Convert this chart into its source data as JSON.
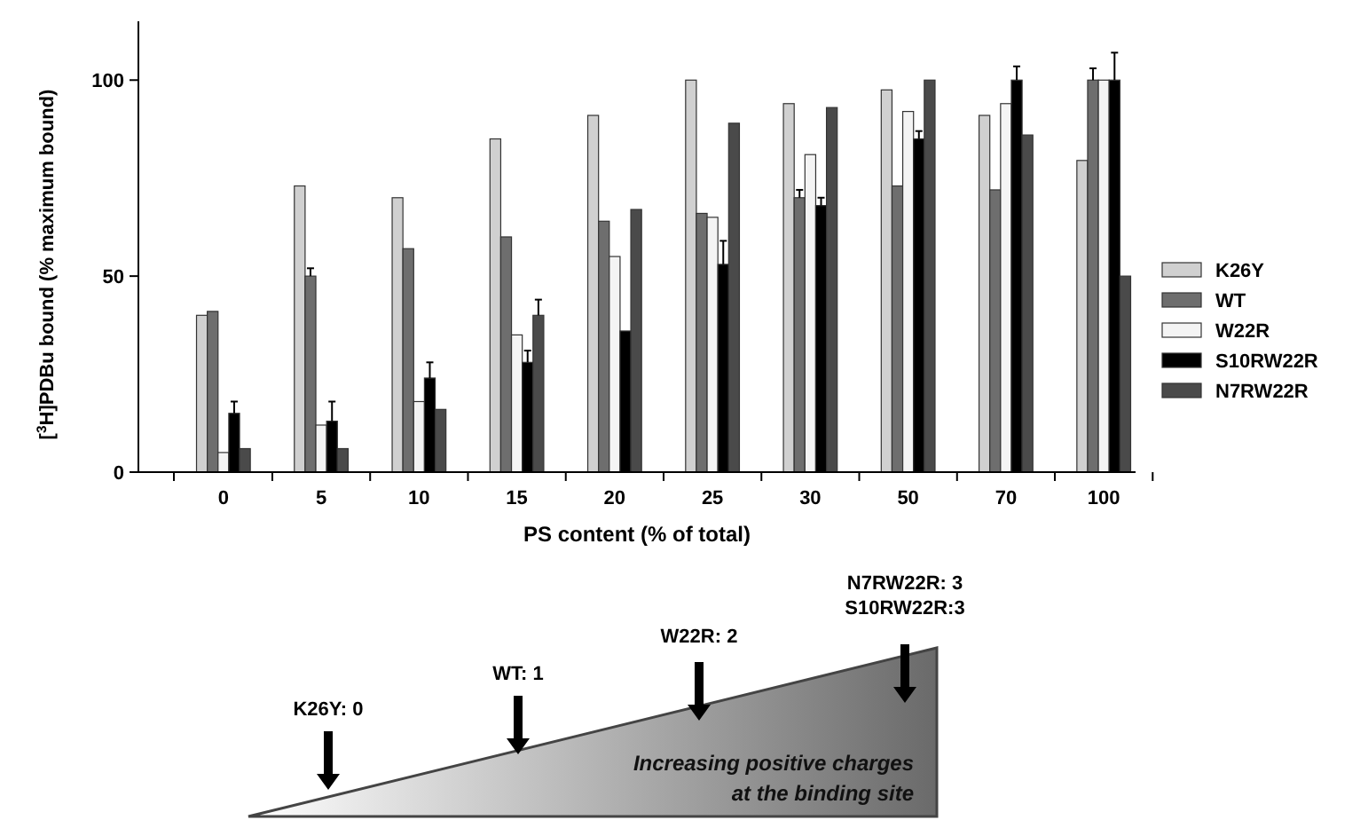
{
  "chart_data": {
    "type": "bar",
    "xlabel": "PS content (% of total)",
    "ylabel": "[$^{3}$H]PDBu bound (% maximum bound)",
    "categories": [
      "0",
      "5",
      "10",
      "15",
      "20",
      "25",
      "30",
      "50",
      "70",
      "100"
    ],
    "ylim": [
      0,
      115
    ],
    "yticks": [
      0,
      50,
      100
    ],
    "legend": "right",
    "grid": false,
    "series": [
      {
        "name": "K26Y",
        "color": "#d0d0d0",
        "values": [
          40,
          73,
          70,
          85,
          91,
          100,
          94,
          97.5,
          91,
          79.5
        ]
      },
      {
        "name": "WT",
        "color": "#6e6e6e",
        "values": [
          41,
          50,
          57,
          60,
          64,
          66,
          70,
          73,
          72,
          100
        ],
        "errors": [
          null,
          [
            50,
            52
          ],
          null,
          null,
          null,
          null,
          [
            70,
            72
          ],
          null,
          null,
          [
            100,
            103
          ]
        ]
      },
      {
        "name": "W22R",
        "color": "#f4f4f4",
        "values": [
          5,
          12,
          18,
          35,
          55,
          65,
          81,
          92,
          94,
          100
        ]
      },
      {
        "name": "S10RW22R",
        "color": "#000000",
        "values": [
          15,
          13,
          24,
          28,
          36,
          53,
          68,
          85,
          100,
          100
        ],
        "errors": [
          [
            15,
            18
          ],
          [
            13,
            18
          ],
          [
            24,
            28
          ],
          [
            28,
            31
          ],
          null,
          [
            53,
            59
          ],
          [
            68,
            70
          ],
          [
            85,
            87
          ],
          [
            100,
            103.5
          ],
          [
            100,
            107
          ]
        ]
      },
      {
        "name": "N7RW22R",
        "color": "#4a4a4a",
        "values": [
          6,
          6,
          16,
          40,
          67,
          89,
          93,
          100,
          86,
          50
        ],
        "errors": [
          null,
          null,
          null,
          [
            40,
            44
          ],
          null,
          null,
          null,
          null,
          null,
          null
        ]
      }
    ],
    "annotations": [
      "K26Y: 0",
      "WT: 1",
      "W22R: 2",
      "N7RW22R: 3",
      "S10RW22R:3",
      "Increasing positive charges at the binding site"
    ]
  }
}
